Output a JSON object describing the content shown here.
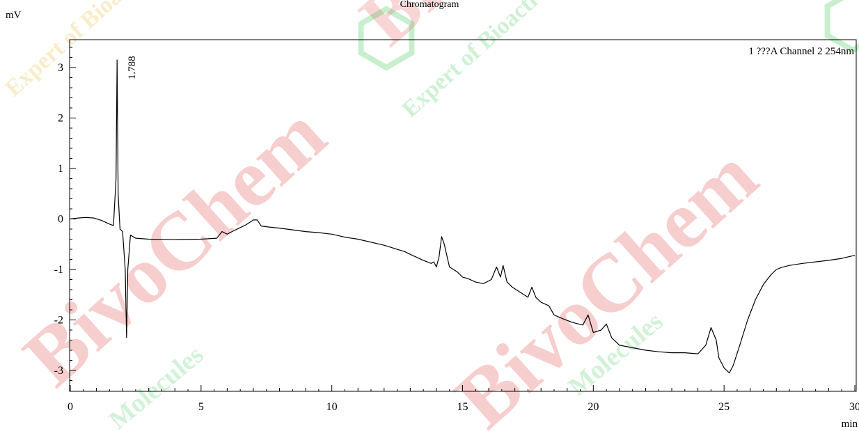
{
  "watermark": {
    "big_word": "BivoChem",
    "small_text_1": "Molecules",
    "small_text_2": "Expert of Bioactive Molecules",
    "red": "#d81e1e",
    "green": "#1fbf3a",
    "yellow": "#e8c34a"
  },
  "chart_data": {
    "type": "line",
    "title": "Chromatogram",
    "ylabel": "mV",
    "xlabel": "min",
    "legend": "1 ???A Channel 2 254nm",
    "legend_position": "top-right",
    "xlim": [
      0,
      30
    ],
    "ylim": [
      -3.4,
      3.5
    ],
    "xticks": [
      0,
      5,
      10,
      15,
      20,
      25,
      30
    ],
    "yticks": [
      -3,
      -2,
      -1,
      0,
      1,
      2,
      3
    ],
    "grid": false,
    "line_color": "#000000",
    "peak_label": {
      "text": "1.788",
      "x": 1.788,
      "y": 3.15
    },
    "series": [
      {
        "x": [
          0,
          0.3,
          0.6,
          0.9,
          1.2,
          1.5,
          1.65,
          1.75,
          1.788,
          1.83,
          1.9,
          2.0,
          2.1,
          2.15,
          2.2,
          2.3,
          2.5,
          3.0,
          4.0,
          5.0,
          5.6,
          5.8,
          6.0,
          6.3,
          6.7,
          7.0,
          7.15,
          7.3,
          7.6,
          8.0,
          9.0,
          9.5,
          10.0,
          10.5,
          11.0,
          12.0,
          12.8,
          13.0,
          13.5,
          13.8,
          13.9,
          14.0,
          14.1,
          14.2,
          14.3,
          14.5,
          14.8,
          15.0,
          15.2,
          15.5,
          15.8,
          16.1,
          16.3,
          16.45,
          16.55,
          16.7,
          16.9,
          17.2,
          17.5,
          17.65,
          17.8,
          18.0,
          18.3,
          18.5,
          18.8,
          19.2,
          19.6,
          19.8,
          20.0,
          20.3,
          20.5,
          20.7,
          21.0,
          21.5,
          22.0,
          22.5,
          23.0,
          23.5,
          24.0,
          24.3,
          24.5,
          24.7,
          24.8,
          25.0,
          25.2,
          25.35,
          25.6,
          25.9,
          26.2,
          26.5,
          26.8,
          27.0,
          27.2,
          27.5,
          28.0,
          28.5,
          29.0,
          29.5,
          30.0
        ],
        "values": [
          0.0,
          0.02,
          0.03,
          0.02,
          -0.03,
          -0.1,
          -0.13,
          0.8,
          3.15,
          0.5,
          -0.2,
          -0.25,
          -1.0,
          -2.35,
          -1.0,
          -0.32,
          -0.38,
          -0.4,
          -0.41,
          -0.4,
          -0.38,
          -0.25,
          -0.3,
          -0.22,
          -0.12,
          -0.02,
          -0.02,
          -0.14,
          -0.16,
          -0.18,
          -0.25,
          -0.27,
          -0.3,
          -0.36,
          -0.4,
          -0.52,
          -0.65,
          -0.7,
          -0.82,
          -0.88,
          -0.85,
          -0.95,
          -0.75,
          -0.35,
          -0.5,
          -0.95,
          -1.05,
          -1.15,
          -1.18,
          -1.25,
          -1.28,
          -1.2,
          -0.95,
          -1.15,
          -0.92,
          -1.25,
          -1.35,
          -1.45,
          -1.55,
          -1.35,
          -1.55,
          -1.65,
          -1.72,
          -1.9,
          -1.97,
          -2.05,
          -2.1,
          -1.9,
          -2.25,
          -2.2,
          -2.08,
          -2.35,
          -2.5,
          -2.55,
          -2.6,
          -2.63,
          -2.65,
          -2.65,
          -2.67,
          -2.5,
          -2.15,
          -2.4,
          -2.75,
          -2.95,
          -3.05,
          -2.9,
          -2.5,
          -2.0,
          -1.6,
          -1.3,
          -1.1,
          -1.0,
          -0.96,
          -0.92,
          -0.88,
          -0.85,
          -0.82,
          -0.78,
          -0.72
        ]
      }
    ]
  }
}
